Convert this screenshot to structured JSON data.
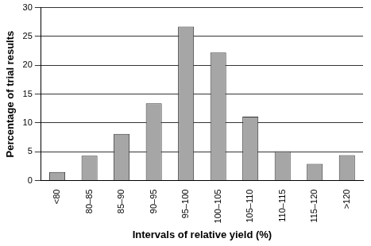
{
  "chart_data": {
    "type": "bar",
    "x_label": "Intervals of relative yield (%)",
    "y_label": "Percentage of trial results",
    "categories": [
      "<80",
      "80–85",
      "85–90",
      "90–95",
      "95–100",
      "100–105",
      "105–110",
      "110–115",
      "115–120",
      ">120"
    ],
    "values": [
      1.5,
      4.3,
      8.1,
      13.4,
      26.7,
      22.2,
      11.1,
      5.1,
      2.9,
      4.4
    ],
    "color": "#a6a6a6",
    "ylim": [
      0,
      30
    ],
    "yticks": [
      0,
      5,
      10,
      15,
      20,
      25,
      30
    ],
    "grid": true
  }
}
